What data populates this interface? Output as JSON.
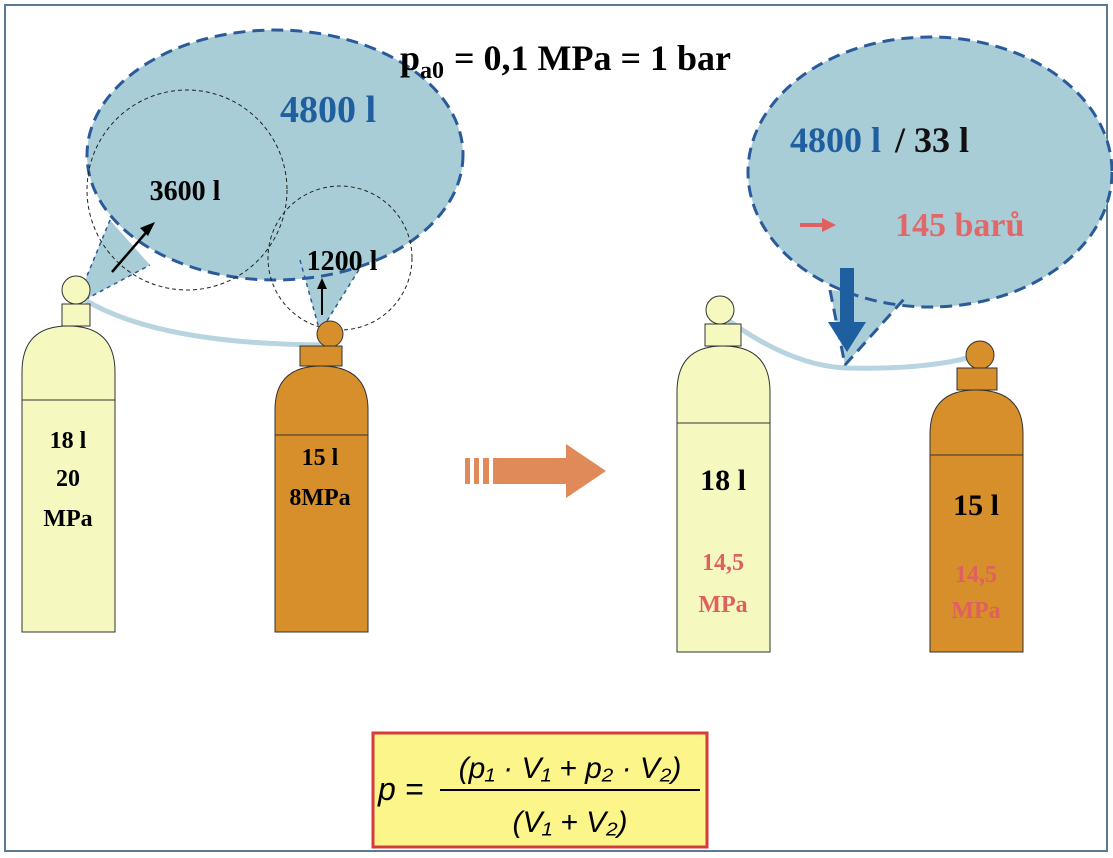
{
  "title": {
    "base": "p",
    "subscript": "a0",
    "rest": "= 0,1 MPa = 1 bar"
  },
  "left_bubble": {
    "total": "4800 l",
    "first": "3600 l",
    "second": "1200 l"
  },
  "left_cylinders": [
    {
      "volume": "18 l",
      "pressure": "20",
      "unit": "MPa"
    },
    {
      "volume": "15 l",
      "pressure": "8MPa"
    }
  ],
  "right_bubble": {
    "total": "4800 l",
    "volume": "/ 33 l",
    "result": "145 barů"
  },
  "right_cylinders": [
    {
      "volume": "18 l",
      "pressure": "14,5",
      "unit": "MPa"
    },
    {
      "volume": "15 l",
      "pressure": "14,5",
      "unit": "MPa"
    }
  ],
  "formula": {
    "lhs": "p =",
    "numerator": "(p₁ · V₁ + p₂ · V₂)",
    "denominator": "(V₁ + V₂)"
  }
}
